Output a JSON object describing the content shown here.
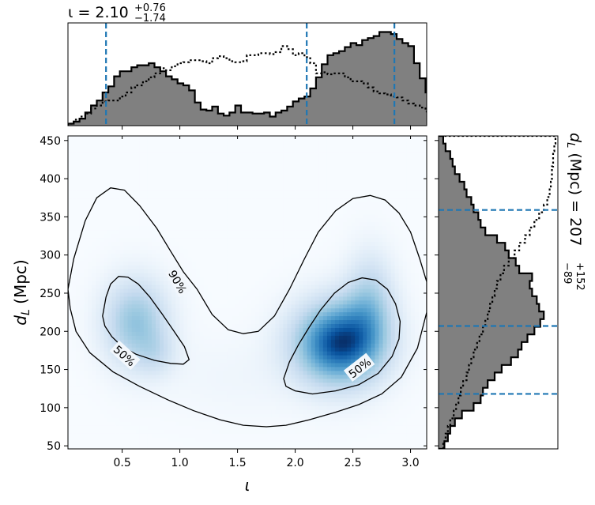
{
  "chart_data": {
    "type": "corner-plot",
    "top_title": {
      "symbol": "ι",
      "eq": " = 2.10",
      "plus": "+0.76",
      "minus": "−1.74"
    },
    "right_title": {
      "symbol": "d",
      "sub": "L",
      "unit": " (Mpc) = 207",
      "plus": "+152",
      "minus": "−89"
    },
    "main": {
      "xlabel": "ι",
      "ylabel_symbol": "d",
      "ylabel_sub": "L",
      "ylabel_unit": " (Mpc)",
      "xlim": [
        0.03,
        3.14
      ],
      "ylim": [
        46,
        456
      ],
      "xticks": [
        0.5,
        1.0,
        1.5,
        2.0,
        2.5,
        3.0
      ],
      "xtick_labels": [
        "0.5",
        "1.0",
        "1.5",
        "2.0",
        "2.5",
        "3.0"
      ],
      "yticks": [
        50,
        100,
        150,
        200,
        250,
        300,
        350,
        400,
        450
      ],
      "ytick_labels": [
        "50",
        "100",
        "150",
        "200",
        "250",
        "300",
        "350",
        "400",
        "450"
      ],
      "density_peaks": [
        {
          "x": 2.38,
          "y": 185,
          "sx": 0.27,
          "sy": 38,
          "w": 1.0
        },
        {
          "x": 2.65,
          "y": 240,
          "sx": 0.15,
          "sy": 45,
          "w": 0.35
        },
        {
          "x": 0.62,
          "y": 212,
          "sx": 0.2,
          "sy": 40,
          "w": 0.5
        },
        {
          "x": 0.8,
          "y": 170,
          "sx": 0.12,
          "sy": 20,
          "w": 0.15
        },
        {
          "x": 1.5,
          "y": 140,
          "sx": 0.5,
          "sy": 40,
          "w": 0.05
        }
      ],
      "contour_90": [
        [
          0.03,
          255
        ],
        [
          0.08,
          295
        ],
        [
          0.18,
          345
        ],
        [
          0.28,
          375
        ],
        [
          0.4,
          388
        ],
        [
          0.52,
          385
        ],
        [
          0.65,
          365
        ],
        [
          0.8,
          335
        ],
        [
          0.92,
          305
        ],
        [
          1.03,
          278
        ],
        [
          1.15,
          255
        ],
        [
          1.28,
          222
        ],
        [
          1.42,
          202
        ],
        [
          1.55,
          197
        ],
        [
          1.68,
          200
        ],
        [
          1.82,
          220
        ],
        [
          1.95,
          255
        ],
        [
          2.08,
          295
        ],
        [
          2.2,
          330
        ],
        [
          2.35,
          358
        ],
        [
          2.5,
          374
        ],
        [
          2.65,
          378
        ],
        [
          2.78,
          372
        ],
        [
          2.9,
          355
        ],
        [
          3.0,
          330
        ],
        [
          3.08,
          295
        ],
        [
          3.14,
          265
        ],
        [
          3.14,
          225
        ],
        [
          3.06,
          178
        ],
        [
          2.92,
          140
        ],
        [
          2.75,
          118
        ],
        [
          2.55,
          104
        ],
        [
          2.35,
          94
        ],
        [
          2.12,
          84
        ],
        [
          1.92,
          77
        ],
        [
          1.75,
          75
        ],
        [
          1.55,
          77
        ],
        [
          1.35,
          84
        ],
        [
          1.12,
          96
        ],
        [
          0.9,
          110
        ],
        [
          0.65,
          128
        ],
        [
          0.42,
          147
        ],
        [
          0.22,
          172
        ],
        [
          0.1,
          200
        ],
        [
          0.05,
          230
        ],
        [
          0.03,
          255
        ]
      ],
      "contour_50_left": [
        [
          0.33,
          220
        ],
        [
          0.36,
          245
        ],
        [
          0.4,
          262
        ],
        [
          0.47,
          272
        ],
        [
          0.55,
          271
        ],
        [
          0.64,
          262
        ],
        [
          0.74,
          245
        ],
        [
          0.85,
          222
        ],
        [
          0.95,
          200
        ],
        [
          1.04,
          180
        ],
        [
          1.08,
          163
        ],
        [
          1.03,
          157
        ],
        [
          0.92,
          158
        ],
        [
          0.78,
          162
        ],
        [
          0.62,
          170
        ],
        [
          0.5,
          180
        ],
        [
          0.41,
          193
        ],
        [
          0.35,
          207
        ],
        [
          0.33,
          220
        ]
      ],
      "contour_50_right": [
        [
          1.9,
          138
        ],
        [
          1.95,
          160
        ],
        [
          2.03,
          183
        ],
        [
          2.12,
          205
        ],
        [
          2.22,
          228
        ],
        [
          2.34,
          250
        ],
        [
          2.46,
          264
        ],
        [
          2.58,
          270
        ],
        [
          2.7,
          267
        ],
        [
          2.8,
          255
        ],
        [
          2.87,
          236
        ],
        [
          2.91,
          213
        ],
        [
          2.9,
          190
        ],
        [
          2.84,
          167
        ],
        [
          2.72,
          145
        ],
        [
          2.55,
          130
        ],
        [
          2.35,
          122
        ],
        [
          2.15,
          118
        ],
        [
          2.0,
          122
        ],
        [
          1.92,
          128
        ],
        [
          1.9,
          138
        ]
      ],
      "contour_labels": [
        {
          "text": "90%",
          "x": 0.98,
          "y": 265,
          "angle": 60
        },
        {
          "text": "50%",
          "x": 0.52,
          "y": 168,
          "angle": 42
        },
        {
          "text": "50%",
          "x": 2.56,
          "y": 152,
          "angle": -38
        }
      ]
    },
    "top_hist": {
      "xlim": [
        0.03,
        3.14
      ],
      "ymax": 1.0,
      "bin_width": 0.05,
      "bin_start": 0.03,
      "filled": [
        0.02,
        0.04,
        0.07,
        0.13,
        0.2,
        0.25,
        0.33,
        0.39,
        0.49,
        0.54,
        0.54,
        0.58,
        0.6,
        0.6,
        0.62,
        0.58,
        0.54,
        0.49,
        0.46,
        0.42,
        0.4,
        0.35,
        0.23,
        0.16,
        0.15,
        0.19,
        0.12,
        0.1,
        0.13,
        0.2,
        0.13,
        0.13,
        0.12,
        0.12,
        0.13,
        0.09,
        0.13,
        0.15,
        0.19,
        0.24,
        0.27,
        0.29,
        0.37,
        0.48,
        0.61,
        0.7,
        0.72,
        0.74,
        0.78,
        0.82,
        0.8,
        0.85,
        0.87,
        0.89,
        0.93,
        0.93,
        0.91,
        0.86,
        0.82,
        0.79,
        0.62,
        0.47,
        0.33,
        0.24
      ],
      "dotted": [
        0.02,
        0.06,
        0.09,
        0.12,
        0.17,
        0.2,
        0.24,
        0.25,
        0.25,
        0.29,
        0.33,
        0.38,
        0.4,
        0.44,
        0.48,
        0.52,
        0.57,
        0.55,
        0.59,
        0.62,
        0.63,
        0.65,
        0.65,
        0.64,
        0.62,
        0.67,
        0.69,
        0.67,
        0.64,
        0.63,
        0.64,
        0.7,
        0.7,
        0.72,
        0.72,
        0.71,
        0.73,
        0.79,
        0.76,
        0.7,
        0.72,
        0.68,
        0.62,
        0.52,
        0.53,
        0.51,
        0.52,
        0.52,
        0.48,
        0.44,
        0.44,
        0.42,
        0.38,
        0.34,
        0.32,
        0.31,
        0.29,
        0.28,
        0.25,
        0.22,
        0.2,
        0.18,
        0.14,
        0.1
      ],
      "quantile_lines": [
        0.36,
        2.1,
        2.86
      ]
    },
    "right_hist": {
      "ylim": [
        46,
        456
      ],
      "xmax": 1.0,
      "bin_height": 10,
      "bin_start": 46,
      "filled": [
        0.05,
        0.08,
        0.1,
        0.14,
        0.2,
        0.3,
        0.36,
        0.38,
        0.42,
        0.48,
        0.54,
        0.62,
        0.68,
        0.71,
        0.76,
        0.82,
        0.87,
        0.9,
        0.86,
        0.84,
        0.8,
        0.78,
        0.8,
        0.69,
        0.66,
        0.6,
        0.57,
        0.5,
        0.4,
        0.36,
        0.34,
        0.3,
        0.28,
        0.24,
        0.22,
        0.18,
        0.14,
        0.12,
        0.1,
        0.06,
        0.04
      ],
      "dotted": [
        0.04,
        0.06,
        0.08,
        0.1,
        0.13,
        0.15,
        0.17,
        0.19,
        0.21,
        0.24,
        0.26,
        0.28,
        0.3,
        0.33,
        0.35,
        0.38,
        0.4,
        0.42,
        0.44,
        0.46,
        0.48,
        0.5,
        0.53,
        0.56,
        0.6,
        0.65,
        0.69,
        0.74,
        0.78,
        0.82,
        0.86,
        0.9,
        0.93,
        0.95,
        0.96,
        0.97,
        0.97,
        0.98,
        0.98,
        0.99,
        1.0
      ],
      "quantile_lines": [
        118,
        207,
        359
      ]
    },
    "colors": {
      "fill": "#808080",
      "quantile": "#1f77b4",
      "cmap_dark": "#08306b"
    }
  }
}
